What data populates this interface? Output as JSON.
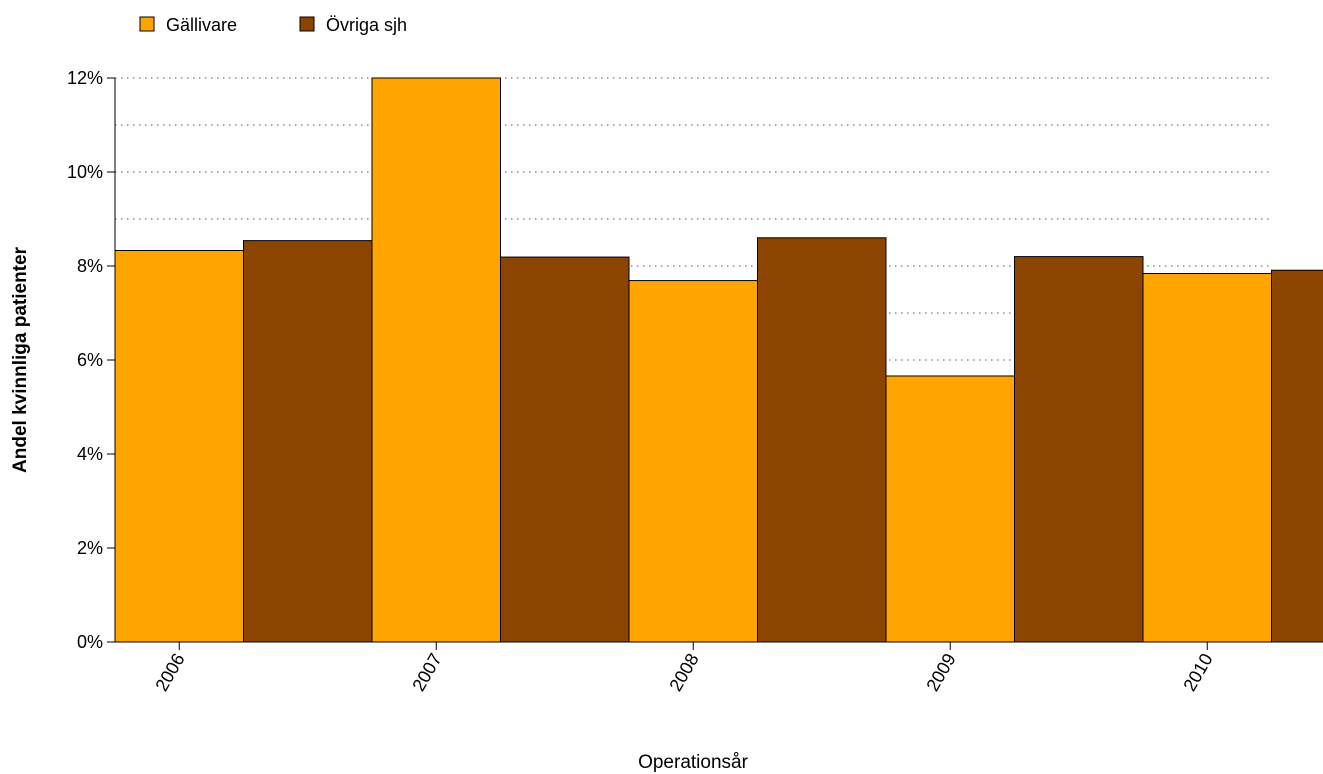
{
  "chart_data": {
    "type": "bar",
    "categories": [
      "2006",
      "2007",
      "2008",
      "2009",
      "2010"
    ],
    "series": [
      {
        "name": "Gällivare",
        "color": "#FFA500",
        "values": [
          8.33,
          12.0,
          7.69,
          5.66,
          7.84
        ]
      },
      {
        "name": "Övriga sjh",
        "color": "#8B4500",
        "values": [
          8.54,
          8.19,
          8.6,
          8.2,
          7.91
        ]
      }
    ],
    "xlabel": "Operationsår",
    "ylabel": "Andel kvinnliga patienter",
    "ylim": [
      0,
      12
    ],
    "yticks": [
      "0%",
      "2%",
      "4%",
      "6%",
      "8%",
      "10%",
      "12%"
    ],
    "grid": true,
    "legend_position": "top-left"
  }
}
